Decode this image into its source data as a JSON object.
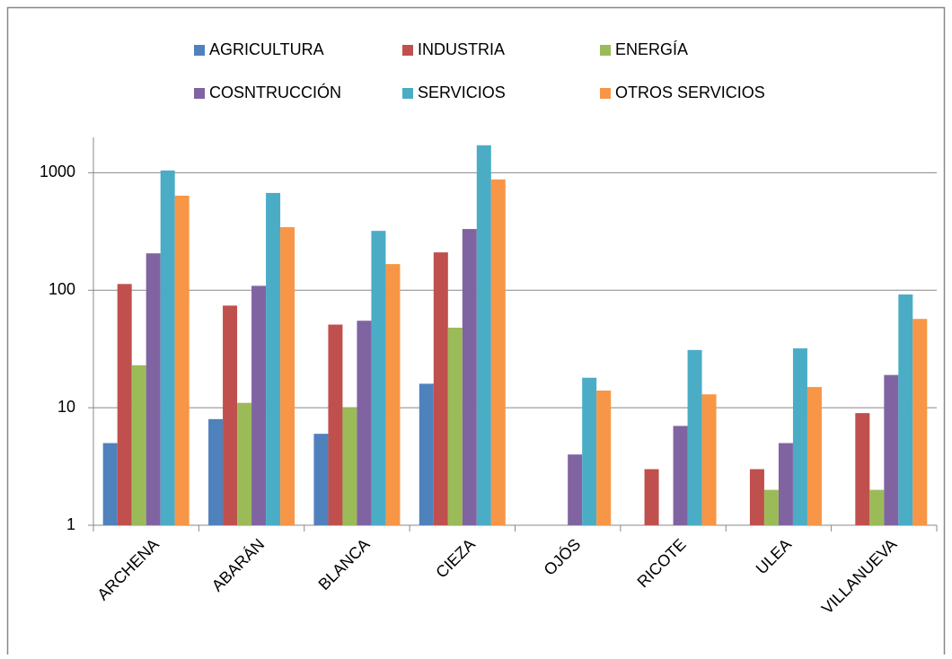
{
  "chart_data": {
    "type": "bar",
    "log_scale": true,
    "grid": true,
    "legend": "top",
    "categories": [
      "ARCHENA",
      "ABARÁN",
      "BLANCA",
      "CIEZA",
      "OJÓS",
      "RICOTE",
      "ULEA",
      "VILLANUEVA"
    ],
    "series": [
      {
        "name": "AGRICULTURA",
        "color": "#4f81bd",
        "values": [
          5,
          8,
          6,
          16,
          null,
          null,
          null,
          null
        ]
      },
      {
        "name": "INDUSTRIA",
        "color": "#c0504d",
        "values": [
          113,
          74,
          51,
          210,
          null,
          3,
          3,
          9
        ]
      },
      {
        "name": "ENERGÍA",
        "color": "#9bbb59",
        "values": [
          23,
          11,
          10,
          48,
          null,
          null,
          2,
          2
        ]
      },
      {
        "name": "COSNTRUCCIÓN",
        "color": "#8064a2",
        "values": [
          206,
          109,
          55,
          332,
          4,
          7,
          5,
          19
        ]
      },
      {
        "name": "SERVICIOS",
        "color": "#4bacc6",
        "values": [
          1045,
          673,
          320,
          1713,
          18,
          31,
          32,
          92
        ]
      },
      {
        "name": "OTROS SERVICIOS",
        "color": "#f79646",
        "values": [
          638,
          344,
          167,
          877,
          14,
          13,
          15,
          57
        ]
      }
    ],
    "ylim": [
      1,
      2000
    ],
    "yticks": [
      1,
      10,
      100,
      1000
    ]
  }
}
